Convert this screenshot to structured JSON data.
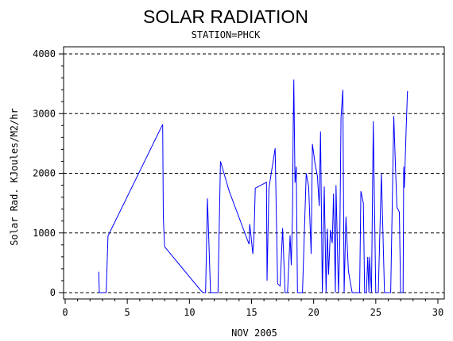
{
  "chart_data": {
    "type": "line",
    "title": "SOLAR RADIATION",
    "subtitle": "STATION=PHCK",
    "xlabel": "NOV 2005",
    "ylabel": "Solar Rad. KJoules/M2/hr",
    "xlim": [
      0,
      30
    ],
    "ylim": [
      0,
      4000
    ],
    "x_ticks": [
      "0",
      "5",
      "10",
      "15",
      "20",
      "25",
      "30"
    ],
    "y_ticks": [
      "0",
      "1000",
      "2000",
      "3000",
      "4000"
    ],
    "grid": "horizontal dashed",
    "series": [
      {
        "color": "#0000ff",
        "x": [
          2.7,
          2.75,
          2.8,
          3.3,
          3.45,
          7.85,
          7.9,
          8.0,
          10.9,
          11.1,
          11.3,
          11.45,
          11.5,
          11.7,
          12.0,
          12.3,
          12.5,
          13.2,
          14.8,
          14.85,
          14.95,
          15.0,
          15.1,
          15.2,
          15.3,
          16.2,
          16.25,
          16.4,
          16.9,
          17.1,
          17.3,
          17.5,
          17.7,
          17.9,
          18.1,
          18.2,
          18.3,
          18.35,
          18.4,
          18.5,
          18.6,
          18.7,
          18.9,
          19.1,
          19.4,
          19.6,
          19.8,
          19.9,
          20.1,
          20.3,
          20.45,
          20.55,
          20.7,
          20.85,
          21.0,
          21.1,
          21.2,
          21.35,
          21.5,
          21.6,
          21.75,
          21.8,
          22.0,
          22.1,
          22.2,
          22.35,
          22.45,
          22.6,
          22.8,
          23.1,
          23.5,
          23.7,
          23.8,
          24.0,
          24.1,
          24.25,
          24.35,
          24.45,
          24.5,
          24.65,
          24.8,
          25.0,
          25.2,
          25.45,
          25.7,
          25.9,
          26.2,
          26.45,
          26.5,
          26.7,
          26.9,
          27.0,
          27.2,
          27.25,
          27.3,
          27.45,
          27.55,
          27.6
        ],
        "y": [
          350,
          0,
          0,
          0,
          950,
          2820,
          1260,
          770,
          40,
          0,
          0,
          1580,
          1270,
          0,
          0,
          0,
          2200,
          1700,
          810,
          1150,
          970,
          860,
          650,
          950,
          1750,
          1850,
          200,
          1750,
          2420,
          150,
          110,
          1080,
          0,
          0,
          960,
          460,
          1350,
          2730,
          3570,
          1840,
          2110,
          0,
          0,
          0,
          2000,
          1770,
          650,
          2490,
          2180,
          1950,
          1450,
          2700,
          0,
          1780,
          0,
          1070,
          300,
          1050,
          830,
          1660,
          0,
          1800,
          0,
          800,
          2940,
          3400,
          0,
          1270,
          360,
          0,
          0,
          0,
          1700,
          1500,
          0,
          0,
          600,
          0,
          600,
          0,
          2870,
          0,
          0,
          2000,
          0,
          0,
          0,
          2960,
          2630,
          1430,
          1350,
          0,
          0,
          2110,
          1760,
          2760,
          3370,
          3370
        ]
      }
    ]
  }
}
